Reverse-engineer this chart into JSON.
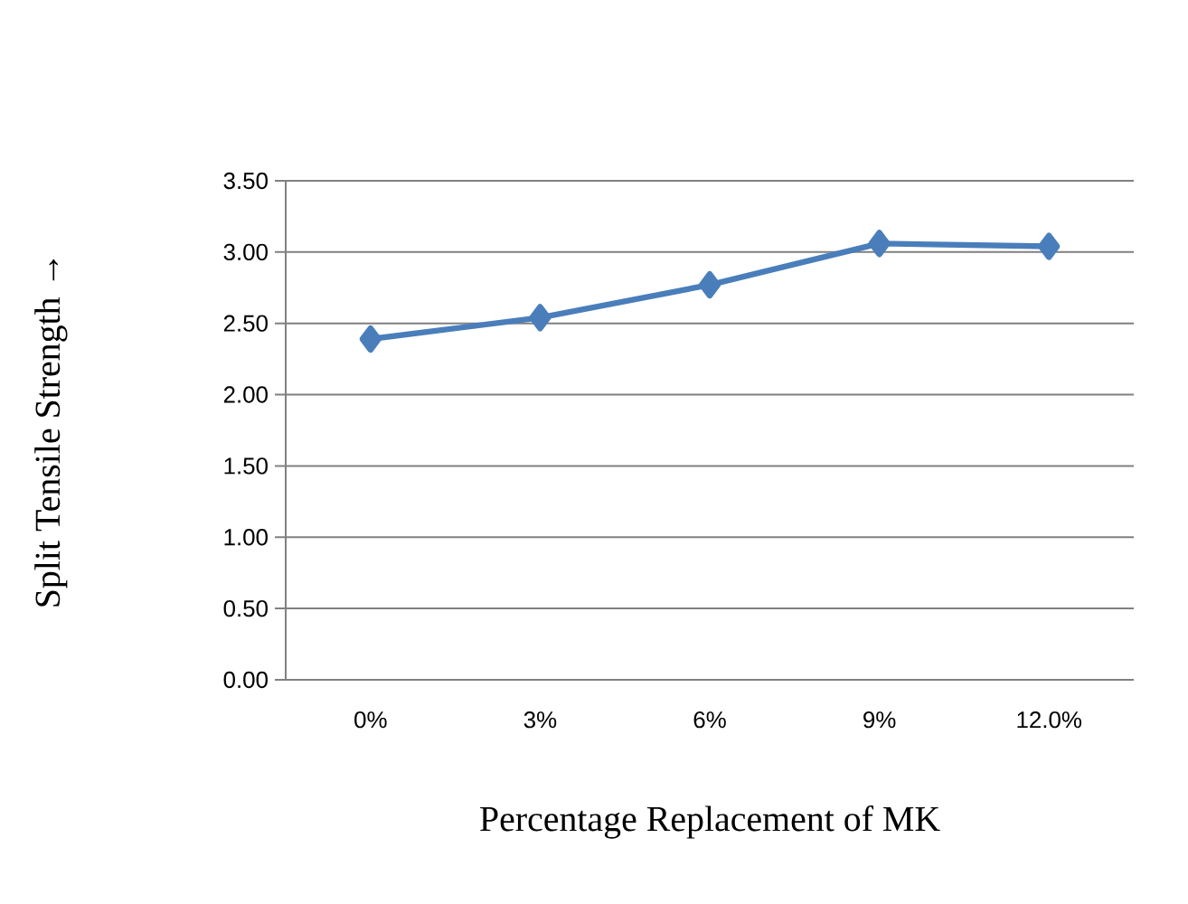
{
  "chart_data": {
    "type": "line",
    "xlabel": "Percentage Replacement of MK",
    "ylabel": "Split Tensile Strength →",
    "categories": [
      "0%",
      "3%",
      "6%",
      "9%",
      "12.0%"
    ],
    "series": [
      {
        "color": "#4a7ebb",
        "values": [
          2.39,
          2.54,
          2.77,
          3.06,
          3.04
        ]
      }
    ],
    "ylim": [
      0,
      3.5
    ],
    "yticks": [
      {
        "value": 0,
        "label": "0.00"
      },
      {
        "value": 0.5,
        "label": "0.50"
      },
      {
        "value": 1,
        "label": "1.00"
      },
      {
        "value": 1.5,
        "label": "1.50"
      },
      {
        "value": 2,
        "label": "2.00"
      },
      {
        "value": 2.5,
        "label": "2.50"
      },
      {
        "value": 3,
        "label": "3.00"
      },
      {
        "value": 3.5,
        "label": "3.50"
      }
    ],
    "grid": "y",
    "marker": "diamond",
    "line_style": "solid"
  }
}
